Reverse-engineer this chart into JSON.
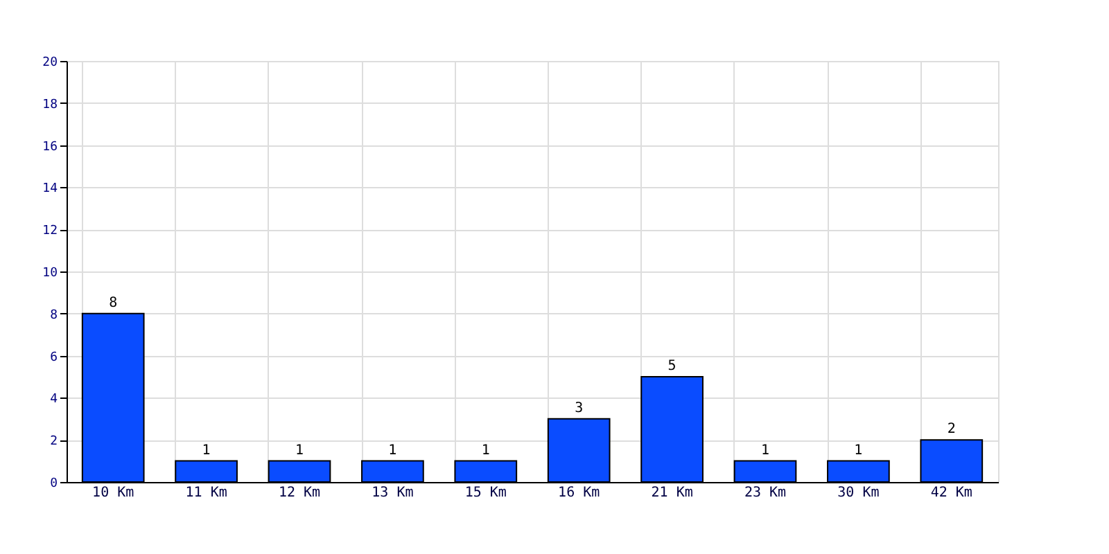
{
  "chart_data": {
    "type": "bar",
    "categories": [
      "10 Km",
      "11 Km",
      "12 Km",
      "13 Km",
      "15 Km",
      "16 Km",
      "21 Km",
      "23 Km",
      "30 Km",
      "42 Km"
    ],
    "values": [
      8,
      1,
      1,
      1,
      1,
      3,
      5,
      1,
      1,
      2
    ],
    "color": "#0a4cff",
    "ylim": [
      0,
      20
    ],
    "yticks": [
      0,
      2,
      4,
      6,
      8,
      10,
      12,
      14,
      16,
      18,
      20
    ],
    "grid": true,
    "data_labels": true
  }
}
